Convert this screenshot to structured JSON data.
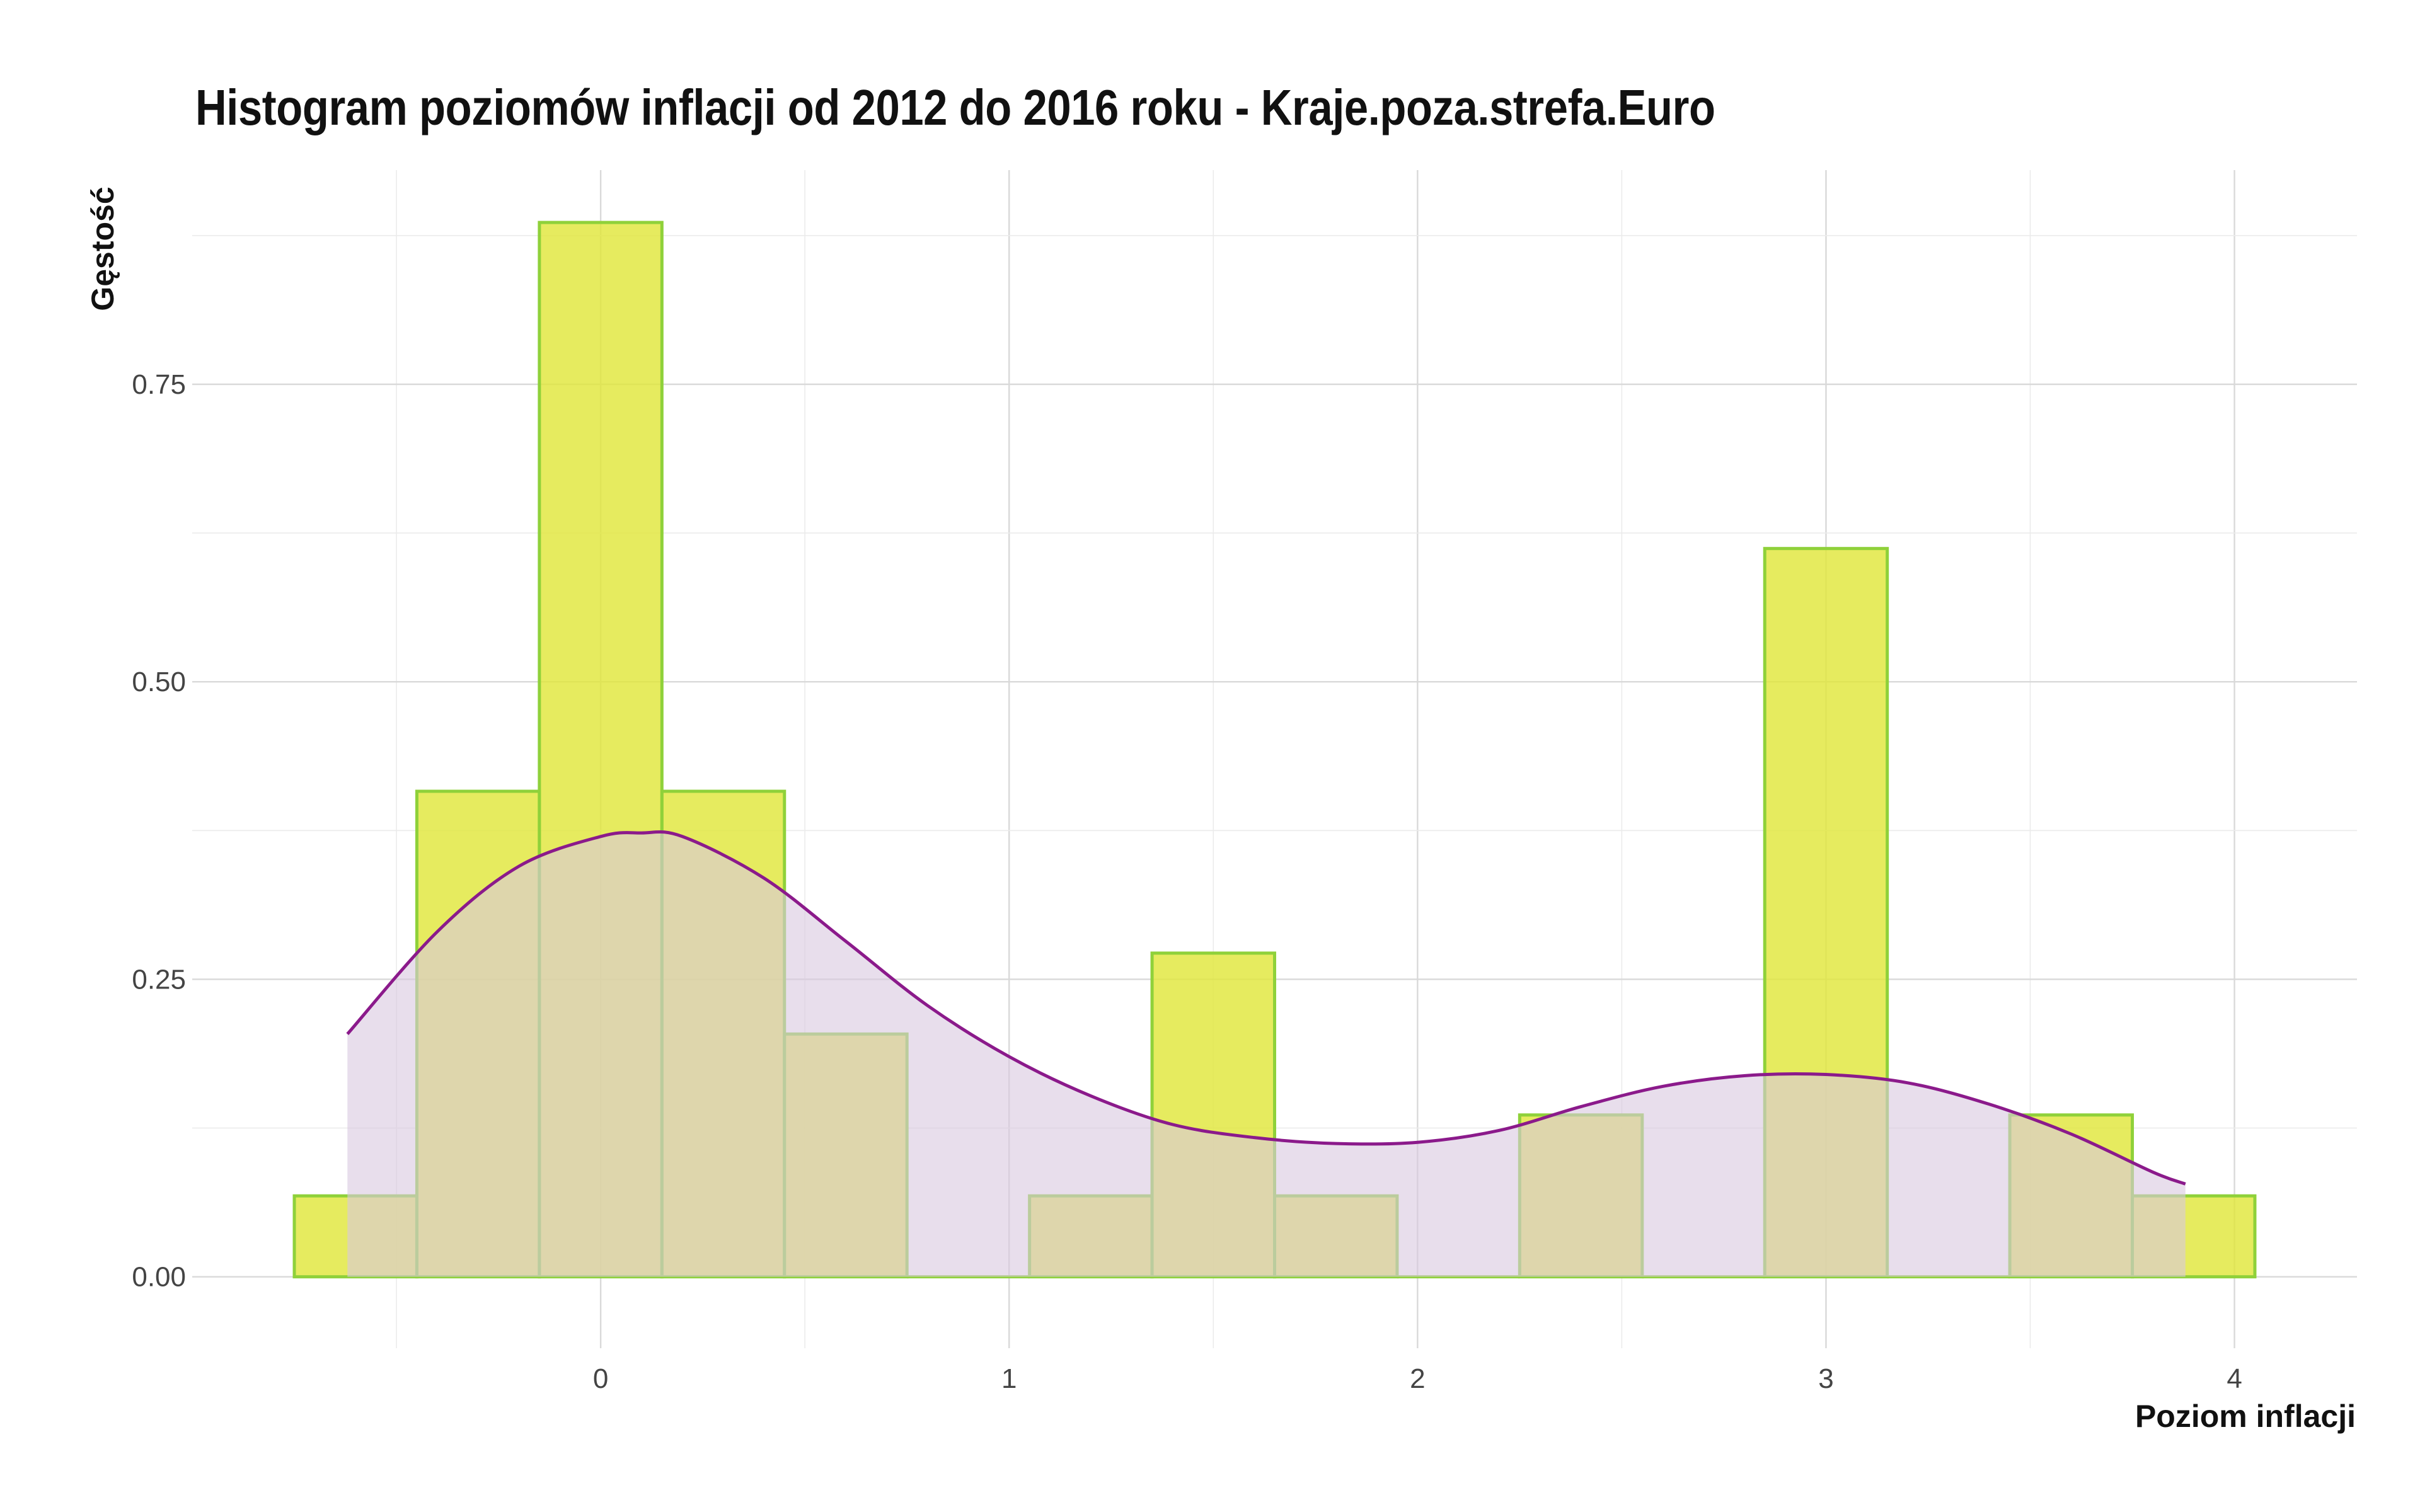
{
  "chart_data": {
    "type": "histogram",
    "title": "Histogram poziomów inflacji od 2012 do 2016 roku  -  Kraje.poza.strefa.Euro",
    "xlabel": "Poziom inflacji",
    "ylabel": "Gęstość",
    "xlim": [
      -1,
      4.3
    ],
    "ylim": [
      -0.06,
      0.93
    ],
    "x_ticks": [
      0,
      1,
      2,
      3,
      4
    ],
    "x_tick_labels": [
      "0",
      "1",
      "2",
      "3",
      "4"
    ],
    "y_ticks": [
      0,
      0.25,
      0.5,
      0.75
    ],
    "y_tick_labels": [
      "0.00",
      "0.25",
      "0.50",
      "0.75"
    ],
    "grid": true,
    "histogram": {
      "bin_width": 0.3,
      "fill": "#e0e63c",
      "stroke": "#8fd13a",
      "bins": [
        {
          "x_start": -0.75,
          "x_end": -0.45,
          "density": 0.068
        },
        {
          "x_start": -0.45,
          "x_end": -0.15,
          "density": 0.408
        },
        {
          "x_start": -0.15,
          "x_end": 0.15,
          "density": 0.886
        },
        {
          "x_start": 0.15,
          "x_end": 0.45,
          "density": 0.408
        },
        {
          "x_start": 0.45,
          "x_end": 0.75,
          "density": 0.204
        },
        {
          "x_start": 0.75,
          "x_end": 1.05,
          "density": 0.0
        },
        {
          "x_start": 1.05,
          "x_end": 1.35,
          "density": 0.068
        },
        {
          "x_start": 1.35,
          "x_end": 1.65,
          "density": 0.272
        },
        {
          "x_start": 1.65,
          "x_end": 1.95,
          "density": 0.068
        },
        {
          "x_start": 1.95,
          "x_end": 2.25,
          "density": 0.0
        },
        {
          "x_start": 2.25,
          "x_end": 2.55,
          "density": 0.136
        },
        {
          "x_start": 2.55,
          "x_end": 2.85,
          "density": 0.0
        },
        {
          "x_start": 2.85,
          "x_end": 3.15,
          "density": 0.612
        },
        {
          "x_start": 3.15,
          "x_end": 3.45,
          "density": 0.0
        },
        {
          "x_start": 3.45,
          "x_end": 3.75,
          "density": 0.136
        },
        {
          "x_start": 3.75,
          "x_end": 4.05,
          "density": 0.068
        }
      ]
    },
    "density_curve": {
      "stroke": "#8b1a8b",
      "fill": "#d8c8e0",
      "x": [
        -0.62,
        -0.4,
        -0.2,
        0.0,
        0.1,
        0.2,
        0.4,
        0.6,
        0.8,
        1.0,
        1.2,
        1.4,
        1.6,
        1.8,
        2.0,
        2.2,
        2.4,
        2.6,
        2.8,
        3.0,
        3.2,
        3.4,
        3.6,
        3.8,
        3.88
      ],
      "y": [
        0.204,
        0.29,
        0.345,
        0.37,
        0.373,
        0.37,
        0.335,
        0.282,
        0.228,
        0.185,
        0.152,
        0.128,
        0.117,
        0.112,
        0.113,
        0.123,
        0.143,
        0.16,
        0.169,
        0.17,
        0.163,
        0.145,
        0.12,
        0.088,
        0.078
      ]
    }
  }
}
